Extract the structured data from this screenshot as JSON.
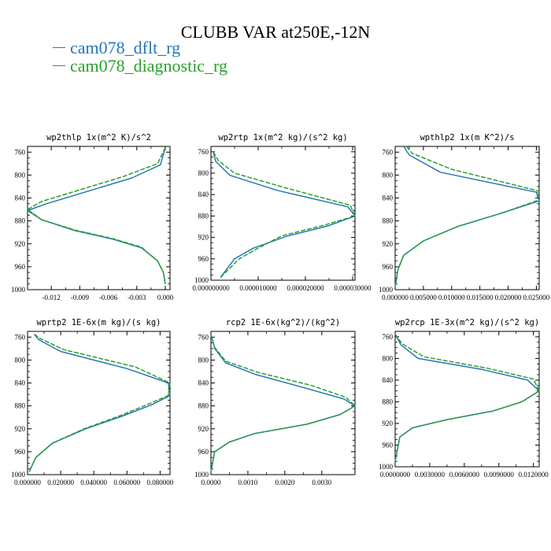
{
  "title": "CLUBB VAR at250E,-12N",
  "legend": [
    {
      "label": "cam078_dflt_rg",
      "color": "#2878b4"
    },
    {
      "label": "cam078_diagnostic_rg",
      "color": "#2ca02c"
    }
  ],
  "chart_data": [
    {
      "type": "line",
      "title": "wp2thlp  1x(m^2 K)/s^2",
      "ylim": [
        1000,
        750
      ],
      "yticks": [
        760,
        800,
        840,
        880,
        920,
        960,
        1000
      ],
      "xlim": [
        -0.0145,
        0.0005
      ],
      "xticks": [
        -0.012,
        -0.009,
        -0.006,
        -0.003,
        0.0
      ],
      "xtick_labels": [
        "-0.012",
        "-0.009",
        "-0.006",
        "-0.003",
        "0.000"
      ],
      "series": [
        {
          "name": "cam078_dflt_rg",
          "color": "#2878b4",
          "x": [
            0.0,
            -0.0005,
            -0.0035,
            -0.0125,
            -0.0145,
            -0.013,
            -0.0095,
            -0.0055,
            -0.0025,
            -0.0008,
            -0.0002,
            0.0
          ],
          "y": [
            752,
            782,
            805,
            850,
            862,
            878,
            897,
            912,
            927,
            950,
            970,
            990
          ]
        },
        {
          "name": "cam078_diagnostic_rg",
          "color": "#2ca02c",
          "x": [
            0.0,
            -0.0008,
            -0.0045,
            -0.013,
            -0.0145,
            -0.013,
            -0.0095,
            -0.0055,
            -0.0025,
            -0.0008,
            -0.0002,
            0.0
          ],
          "y": [
            752,
            780,
            803,
            846,
            860,
            878,
            896,
            911,
            926,
            950,
            970,
            990
          ]
        }
      ]
    },
    {
      "type": "line",
      "title": "wp2rtp  1x(m^2 kg)/(s^2 kg)",
      "ylim": [
        1000,
        750
      ],
      "yticks": [
        760,
        800,
        840,
        880,
        920,
        960,
        1000
      ],
      "xlim": [
        0.0,
        3.05e-05
      ],
      "xticks": [
        0.0,
        1e-05,
        2e-05,
        3e-05
      ],
      "xtick_labels": [
        "0.000000000",
        "0.000010000",
        "0.000020000",
        "0.000030000"
      ],
      "series": [
        {
          "name": "cam078_dflt_rg",
          "color": "#2878b4",
          "x": [
            5e-07,
            1e-06,
            4e-06,
            1.4e-05,
            2.9e-05,
            3.05e-05,
            2.5e-05,
            1.6e-05,
            9e-06,
            5e-06,
            2e-06
          ],
          "y": [
            760,
            778,
            804,
            832,
            863,
            880,
            898,
            918,
            940,
            960,
            995
          ]
        },
        {
          "name": "cam078_diagnostic_rg",
          "color": "#2ca02c",
          "x": [
            5e-07,
            1.5e-06,
            5e-06,
            1.6e-05,
            2.95e-05,
            3.05e-05,
            2.4e-05,
            1.5e-05,
            1e-05,
            6e-06,
            2e-06
          ],
          "y": [
            760,
            776,
            800,
            828,
            860,
            880,
            897,
            917,
            940,
            960,
            995
          ]
        }
      ]
    },
    {
      "type": "line",
      "title": "wpthlp2  1x(m K^2)/s",
      "ylim": [
        1000,
        750
      ],
      "yticks": [
        760,
        800,
        840,
        880,
        920,
        960,
        1000
      ],
      "xlim": [
        0.0,
        0.0255
      ],
      "xticks": [
        0.0,
        0.005,
        0.01,
        0.015,
        0.02,
        0.025
      ],
      "xtick_labels": [
        "0.000000",
        "0.005000",
        "0.010000",
        "0.015000",
        "0.020000",
        "0.025000"
      ],
      "series": [
        {
          "name": "cam078_dflt_rg",
          "color": "#2878b4",
          "x": [
            0.0015,
            0.0025,
            0.008,
            0.025,
            0.0255,
            0.019,
            0.011,
            0.005,
            0.0015,
            0.0005,
            0.0
          ],
          "y": [
            750,
            765,
            795,
            830,
            845,
            866,
            890,
            915,
            940,
            965,
            995
          ]
        },
        {
          "name": "cam078_diagnostic_rg",
          "color": "#2ca02c",
          "x": [
            0.002,
            0.003,
            0.01,
            0.0255,
            0.025,
            0.019,
            0.011,
            0.005,
            0.0015,
            0.0005,
            0.0
          ],
          "y": [
            750,
            762,
            790,
            828,
            845,
            866,
            890,
            915,
            940,
            965,
            995
          ]
        }
      ]
    },
    {
      "type": "line",
      "title": "wprtp2  1E-6x(m kg)/(s kg)",
      "ylim": [
        1000,
        750
      ],
      "yticks": [
        760,
        800,
        840,
        880,
        920,
        960,
        1000
      ],
      "xlim": [
        0.0,
        0.086
      ],
      "xticks": [
        0.0,
        0.02,
        0.04,
        0.06,
        0.08
      ],
      "xtick_labels": [
        "0.000000",
        "0.020000",
        "0.040000",
        "0.060000",
        "0.080000"
      ],
      "series": [
        {
          "name": "cam078_dflt_rg",
          "color": "#2878b4",
          "x": [
            0.004,
            0.007,
            0.02,
            0.06,
            0.085,
            0.086,
            0.075,
            0.058,
            0.035,
            0.015,
            0.005,
            0.001
          ],
          "y": [
            755,
            765,
            785,
            815,
            840,
            862,
            878,
            897,
            920,
            945,
            970,
            995
          ]
        },
        {
          "name": "cam078_diagnostic_rg",
          "color": "#2ca02c",
          "x": [
            0.004,
            0.008,
            0.022,
            0.065,
            0.086,
            0.085,
            0.072,
            0.056,
            0.034,
            0.015,
            0.005,
            0.001
          ],
          "y": [
            755,
            763,
            782,
            812,
            840,
            862,
            878,
            897,
            920,
            945,
            970,
            995
          ]
        }
      ]
    },
    {
      "type": "line",
      "title": "rcp2  1E-6x(kg^2)/(kg^2)",
      "ylim": [
        1000,
        750
      ],
      "yticks": [
        760,
        800,
        840,
        880,
        920,
        960,
        1000
      ],
      "xlim": [
        0.0,
        0.0039
      ],
      "xticks": [
        0.0,
        0.001,
        0.002,
        0.003
      ],
      "xtick_labels": [
        "0.0000",
        "0.0010",
        "0.0020",
        "0.0030"
      ],
      "series": [
        {
          "name": "cam078_dflt_rg",
          "color": "#2878b4",
          "x": [
            0.0,
            0.0001,
            0.0004,
            0.0012,
            0.0025,
            0.0036,
            0.0039,
            0.0035,
            0.0026,
            0.0012,
            0.0005,
            0.0001,
            0.0
          ],
          "y": [
            755,
            780,
            805,
            825,
            848,
            868,
            880,
            895,
            912,
            928,
            943,
            960,
            995
          ]
        },
        {
          "name": "cam078_diagnostic_rg",
          "color": "#2ca02c",
          "x": [
            0.0,
            0.0001,
            0.0004,
            0.0013,
            0.0027,
            0.00365,
            0.0039,
            0.0035,
            0.0026,
            0.0012,
            0.0005,
            0.0001,
            0.0
          ],
          "y": [
            755,
            778,
            802,
            822,
            844,
            865,
            880,
            895,
            912,
            928,
            943,
            960,
            995
          ]
        }
      ]
    },
    {
      "type": "line",
      "title": "wp2rcp  1E-3x(m^2 kg)/(s^2 kg)",
      "ylim": [
        1000,
        750
      ],
      "yticks": [
        760,
        800,
        840,
        880,
        920,
        960,
        1000
      ],
      "xlim": [
        0.0,
        0.0125
      ],
      "xticks": [
        0.0,
        0.003,
        0.006,
        0.009,
        0.012
      ],
      "xtick_labels": [
        "0.0000000",
        "0.0030000",
        "0.0060000",
        "0.0090000",
        "0.0120000"
      ],
      "series": [
        {
          "name": "cam078_dflt_rg",
          "color": "#2878b4",
          "x": [
            0.0,
            0.0005,
            0.002,
            0.0075,
            0.0115,
            0.0125,
            0.011,
            0.0085,
            0.0045,
            0.0015,
            0.0004,
            0.0
          ],
          "y": [
            755,
            775,
            800,
            820,
            840,
            860,
            880,
            897,
            913,
            928,
            945,
            990
          ]
        },
        {
          "name": "cam078_diagnostic_rg",
          "color": "#2ca02c",
          "x": [
            0.0,
            0.0006,
            0.0025,
            0.008,
            0.012,
            0.0125,
            0.011,
            0.0085,
            0.0045,
            0.0015,
            0.0004,
            0.0
          ],
          "y": [
            755,
            773,
            797,
            818,
            838,
            860,
            880,
            897,
            913,
            928,
            945,
            990
          ]
        }
      ]
    }
  ]
}
